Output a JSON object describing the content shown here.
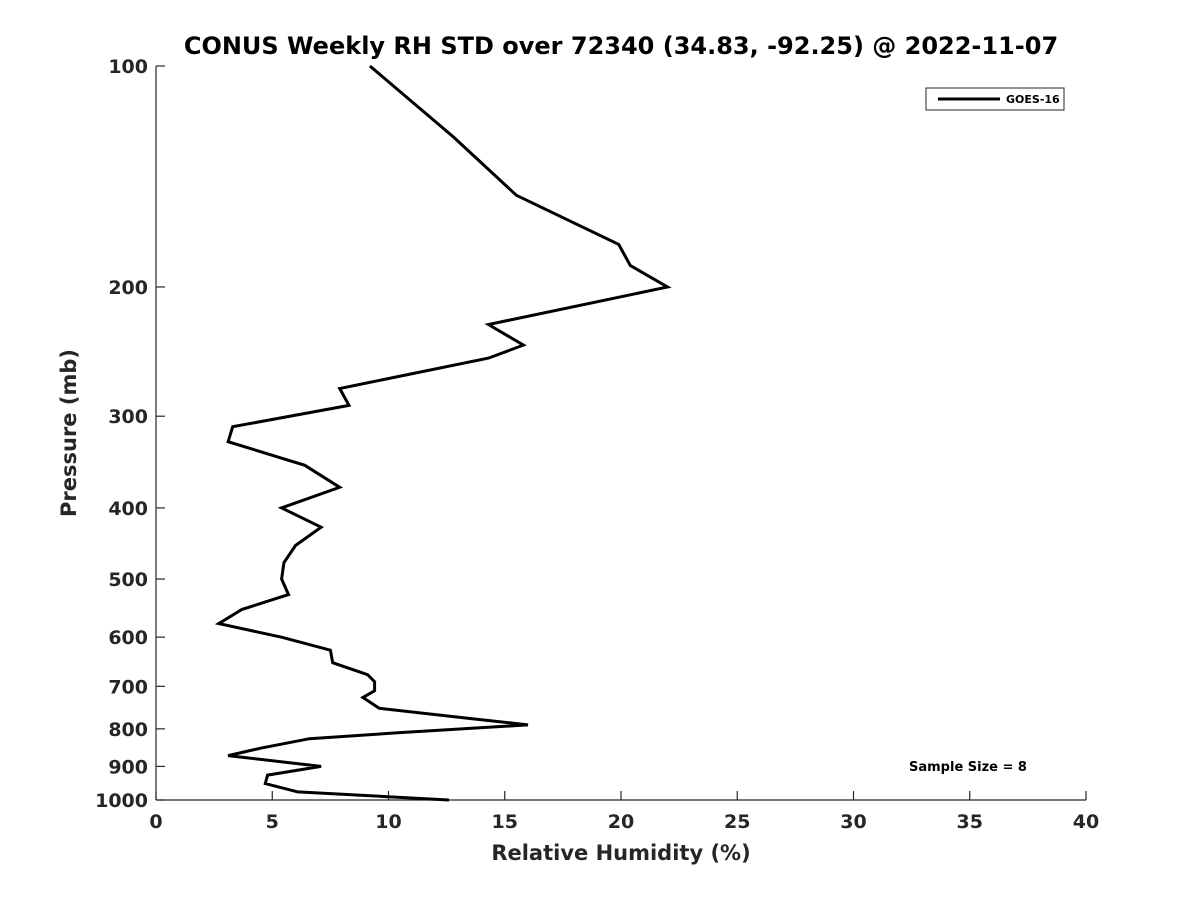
{
  "chart_data": {
    "type": "line",
    "title": "CONUS Weekly RH STD over 72340 (34.83, -92.25) @ 2022-11-07",
    "xlabel": "Relative Humidity (%)",
    "ylabel": "Pressure (mb)",
    "xlim": [
      0,
      40
    ],
    "ylim": [
      1000,
      100
    ],
    "y_scale": "log",
    "y_reversed": true,
    "x_ticks": [
      0,
      5,
      10,
      15,
      20,
      25,
      30,
      35,
      40
    ],
    "x_tick_labels": [
      "0",
      "5",
      "10",
      "15",
      "20",
      "25",
      "30",
      "35",
      "40"
    ],
    "y_ticks": [
      100,
      200,
      300,
      400,
      500,
      600,
      700,
      800,
      900,
      1000
    ],
    "y_tick_labels": [
      "100",
      "200",
      "300",
      "400",
      "500",
      "600",
      "700",
      "800",
      "900",
      "1000"
    ],
    "grid": false,
    "legend": {
      "placement": "top-right",
      "entries": [
        "GOES-16"
      ]
    },
    "annotation": "Sample Size = 8",
    "series": [
      {
        "name": "GOES-16",
        "color": "#000000",
        "points": [
          [
            9.2,
            100
          ],
          [
            12.8,
            125
          ],
          [
            15.5,
            150
          ],
          [
            19.9,
            175
          ],
          [
            20.4,
            187
          ],
          [
            22.0,
            200
          ],
          [
            14.3,
            225
          ],
          [
            15.8,
            240
          ],
          [
            14.3,
            250
          ],
          [
            7.9,
            275
          ],
          [
            8.3,
            290
          ],
          [
            3.3,
            310
          ],
          [
            3.1,
            325
          ],
          [
            6.4,
            350
          ],
          [
            7.9,
            375
          ],
          [
            5.4,
            400
          ],
          [
            7.1,
            425
          ],
          [
            6.0,
            450
          ],
          [
            5.5,
            475
          ],
          [
            5.4,
            500
          ],
          [
            5.7,
            525
          ],
          [
            3.7,
            550
          ],
          [
            2.7,
            575
          ],
          [
            5.4,
            600
          ],
          [
            7.5,
            625
          ],
          [
            7.6,
            650
          ],
          [
            9.1,
            675
          ],
          [
            9.4,
            690
          ],
          [
            9.4,
            710
          ],
          [
            8.9,
            725
          ],
          [
            9.6,
            750
          ],
          [
            13.6,
            775
          ],
          [
            16.0,
            790
          ],
          [
            10.4,
            810
          ],
          [
            6.6,
            825
          ],
          [
            4.5,
            850
          ],
          [
            3.1,
            870
          ],
          [
            7.1,
            900
          ],
          [
            4.8,
            925
          ],
          [
            4.7,
            950
          ],
          [
            6.1,
            975
          ],
          [
            12.6,
            1000
          ]
        ]
      }
    ]
  }
}
